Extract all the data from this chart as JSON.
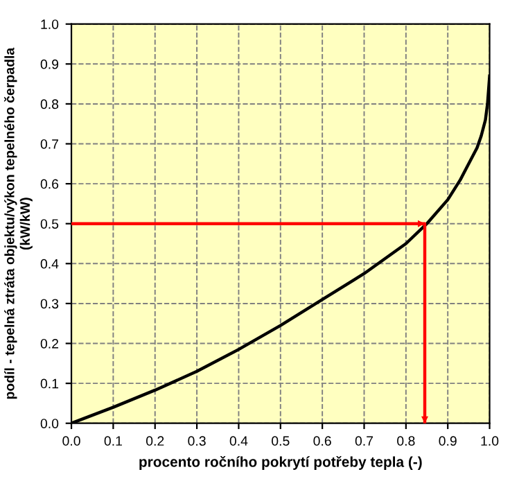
{
  "chart_data": {
    "type": "line",
    "xlabel": "procento ročního pokrytí potřeby tepla (-)",
    "ylabel": "podíl - tepelná ztráta objektu/výkon tepelného čerpadla\n(kW/kW)",
    "xlim": [
      0,
      1
    ],
    "ylim": [
      0,
      1
    ],
    "xticks": [
      {
        "value": 0,
        "label": "0.0"
      },
      {
        "value": 0.1,
        "label": "0.1"
      },
      {
        "value": 0.2,
        "label": "0.2"
      },
      {
        "value": 0.3,
        "label": "0.3"
      },
      {
        "value": 0.4,
        "label": "0.4"
      },
      {
        "value": 0.5,
        "label": "0.5"
      },
      {
        "value": 0.6,
        "label": "0.6"
      },
      {
        "value": 0.7,
        "label": "0.7"
      },
      {
        "value": 0.8,
        "label": "0.8"
      },
      {
        "value": 0.9,
        "label": "0.9"
      },
      {
        "value": 1,
        "label": "1.0"
      }
    ],
    "yticks": [
      {
        "value": 0,
        "label": "0.0"
      },
      {
        "value": 0.1,
        "label": "0.1"
      },
      {
        "value": 0.2,
        "label": "0.2"
      },
      {
        "value": 0.3,
        "label": "0.3"
      },
      {
        "value": 0.4,
        "label": "0.4"
      },
      {
        "value": 0.5,
        "label": "0.5"
      },
      {
        "value": 0.6,
        "label": "0.6"
      },
      {
        "value": 0.7,
        "label": "0.7"
      },
      {
        "value": 0.8,
        "label": "0.8"
      },
      {
        "value": 0.9,
        "label": "0.9"
      },
      {
        "value": 1,
        "label": "1.0"
      }
    ],
    "grid": true,
    "line_style": "solid",
    "series": [
      {
        "color": "#000000",
        "x": [
          0,
          0.05,
          0.1,
          0.2,
          0.3,
          0.4,
          0.5,
          0.6,
          0.7,
          0.8,
          0.85,
          0.9,
          0.93,
          0.95,
          0.97,
          0.98,
          0.99,
          0.995,
          1.0
        ],
        "values": [
          0,
          0.02,
          0.04,
          0.083,
          0.13,
          0.185,
          0.245,
          0.31,
          0.375,
          0.45,
          0.5,
          0.56,
          0.61,
          0.65,
          0.69,
          0.72,
          0.76,
          0.8,
          0.87
        ]
      },
      {
        "color": "#ff0000",
        "x": [
          0,
          0.845,
          0.845
        ],
        "values": [
          0.5,
          0.5,
          0
        ]
      }
    ]
  }
}
